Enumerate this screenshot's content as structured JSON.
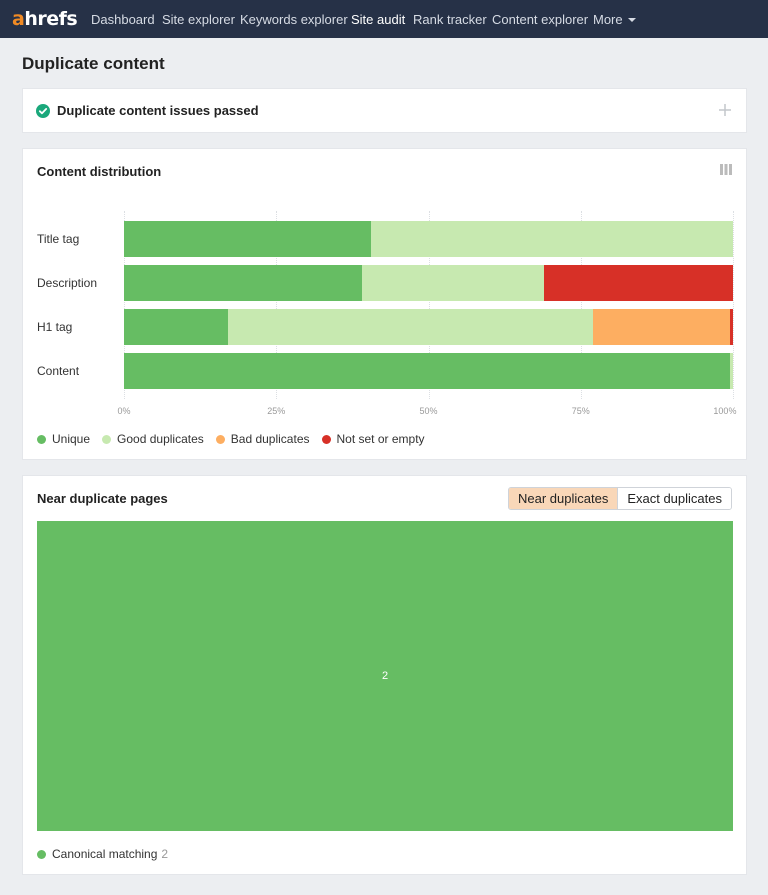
{
  "nav": {
    "logo_a": "a",
    "logo_rest": "hrefs",
    "items": [
      {
        "label": "Dashboard",
        "active": false
      },
      {
        "label": "Site explorer",
        "active": false
      },
      {
        "label": "Keywords explorer",
        "active": false
      },
      {
        "label": "Site audit",
        "active": true
      },
      {
        "label": "Rank tracker",
        "active": false
      },
      {
        "label": "Content explorer",
        "active": false
      },
      {
        "label": "More",
        "active": false,
        "dropdown": true
      }
    ]
  },
  "page": {
    "title": "Duplicate content"
  },
  "issues": {
    "title": "Duplicate content issues passed",
    "status_icon": "check-circle-icon",
    "expand_icon": "plus-icon"
  },
  "distribution": {
    "title": "Content distribution",
    "view_icon": "columns-icon"
  },
  "colors": {
    "unique": "#66bd63",
    "good": "#c7e9b0",
    "bad": "#fdae61",
    "notset": "#d73027",
    "accent": "#f08a24",
    "nav_bg": "#263147",
    "toggle_active": "#f9d7b8"
  },
  "chart_data": {
    "type": "bar",
    "orientation": "horizontal",
    "stacked": "percent",
    "categories": [
      "Title tag",
      "Description",
      "H1 tag",
      "Content"
    ],
    "series": [
      {
        "name": "Unique",
        "values": [
          40.5,
          39,
          17,
          99.5
        ]
      },
      {
        "name": "Good duplicates",
        "values": [
          59.5,
          30,
          60,
          0.5
        ]
      },
      {
        "name": "Bad duplicates",
        "values": [
          0,
          0,
          22.5,
          0
        ]
      },
      {
        "name": "Not set or empty",
        "values": [
          0,
          31,
          0.5,
          0
        ]
      }
    ],
    "xticks": [
      "0%",
      "25%",
      "50%",
      "75%",
      "100%"
    ],
    "xlim": [
      0,
      100
    ],
    "grid": true,
    "legend": "bottom-left"
  },
  "near": {
    "title": "Near duplicate pages",
    "toggle": [
      {
        "label": "Near duplicates",
        "active": true
      },
      {
        "label": "Exact duplicates",
        "active": false
      }
    ],
    "treemap_value": "2",
    "legend_label": "Canonical matching",
    "legend_count": "2"
  }
}
